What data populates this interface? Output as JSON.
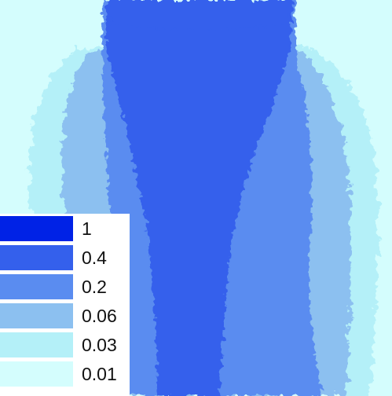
{
  "chart_data": {
    "type": "heatmap",
    "title": "",
    "xlabel": "",
    "ylabel": "",
    "grid": false,
    "legend_position": "bottom-left",
    "background_color": "#d4fdfd",
    "levels": [
      {
        "label": "1",
        "value": 1,
        "color": "#0022e6"
      },
      {
        "label": "0.4",
        "value": 0.4,
        "color": "#3460ec"
      },
      {
        "label": "0.2",
        "value": 0.2,
        "color": "#5a8cf0"
      },
      {
        "label": "0.06",
        "value": 0.06,
        "color": "#8cc0f0"
      },
      {
        "label": "0.03",
        "value": 0.03,
        "color": "#b4f0f8"
      },
      {
        "label": "0.01",
        "value": 0.01,
        "color": "#d4fdfd"
      }
    ]
  }
}
